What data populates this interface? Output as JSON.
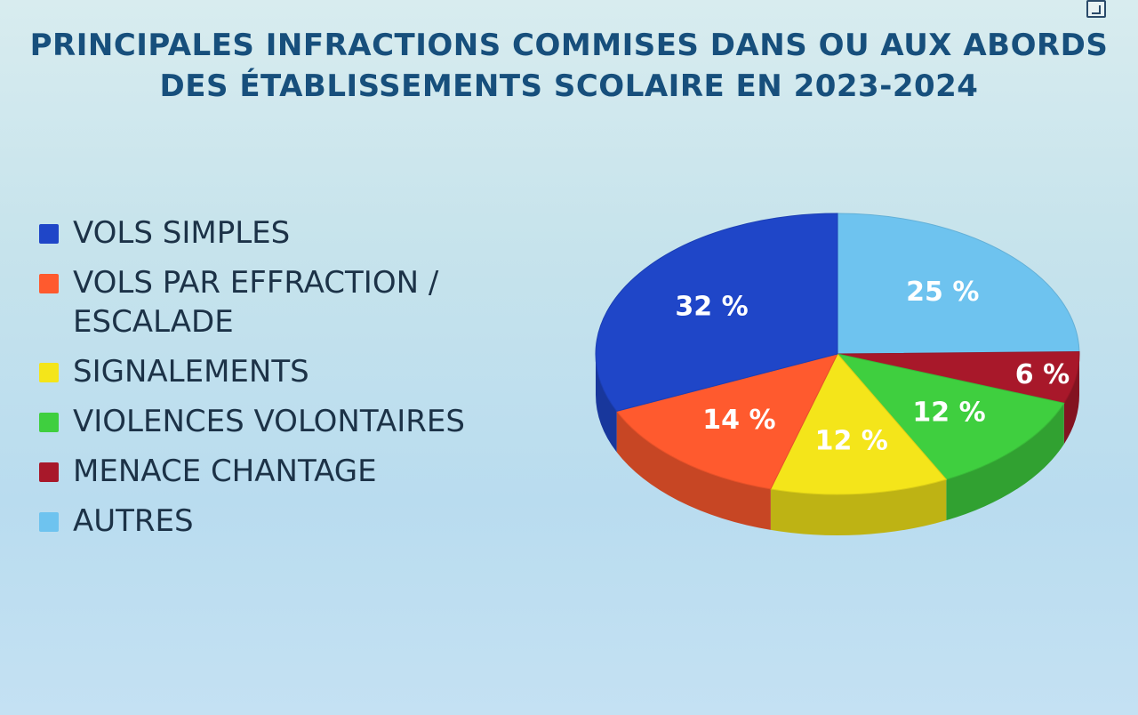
{
  "title": {
    "line1": "PRINCIPALES INFRACTIONS COMMISES DANS OU AUX ABORDS",
    "line2": "DES ÉTABLISSEMENTS SCOLAIRE EN 2023-2024"
  },
  "chart_data": {
    "type": "pie",
    "title": "PRINCIPALES INFRACTIONS COMMISES DANS OU AUX ABORDS DES ÉTABLISSEMENTS SCOLAIRE EN 2023-2024",
    "legend_position": "left",
    "slices": [
      {
        "label": "VOLS SIMPLES",
        "value": 32,
        "display": "32 %",
        "color": "#1f46c8"
      },
      {
        "label": "VOLS PAR EFFRACTION / ESCALADE",
        "value": 14,
        "display": "14 %",
        "color": "#ff5a2e"
      },
      {
        "label": "SIGNALEMENTS",
        "value": 12,
        "display": "12 %",
        "color": "#f4e51a"
      },
      {
        "label": "VIOLENCES VOLONTAIRES",
        "value": 12,
        "display": "12 %",
        "color": "#3fcf3f"
      },
      {
        "label": "MENACE CHANTAGE",
        "value": 6,
        "display": "6 %",
        "color": "#a8182a"
      },
      {
        "label": "AUTRES",
        "value": 25,
        "display": "25 %",
        "color": "#6ec3ef"
      }
    ]
  },
  "legend": {
    "items": [
      {
        "label": "VOLS SIMPLES",
        "color": "#1f46c8"
      },
      {
        "label": "VOLS PAR EFFRACTION / ESCALADE",
        "color": "#ff5a2e"
      },
      {
        "label": "SIGNALEMENTS",
        "color": "#f4e51a"
      },
      {
        "label": "VIOLENCES VOLONTAIRES",
        "color": "#3fcf3f"
      },
      {
        "label": "MENACE CHANTAGE",
        "color": "#a8182a"
      },
      {
        "label": "AUTRES",
        "color": "#6ec3ef"
      }
    ]
  },
  "corner_icon": "presentation-control-icon"
}
